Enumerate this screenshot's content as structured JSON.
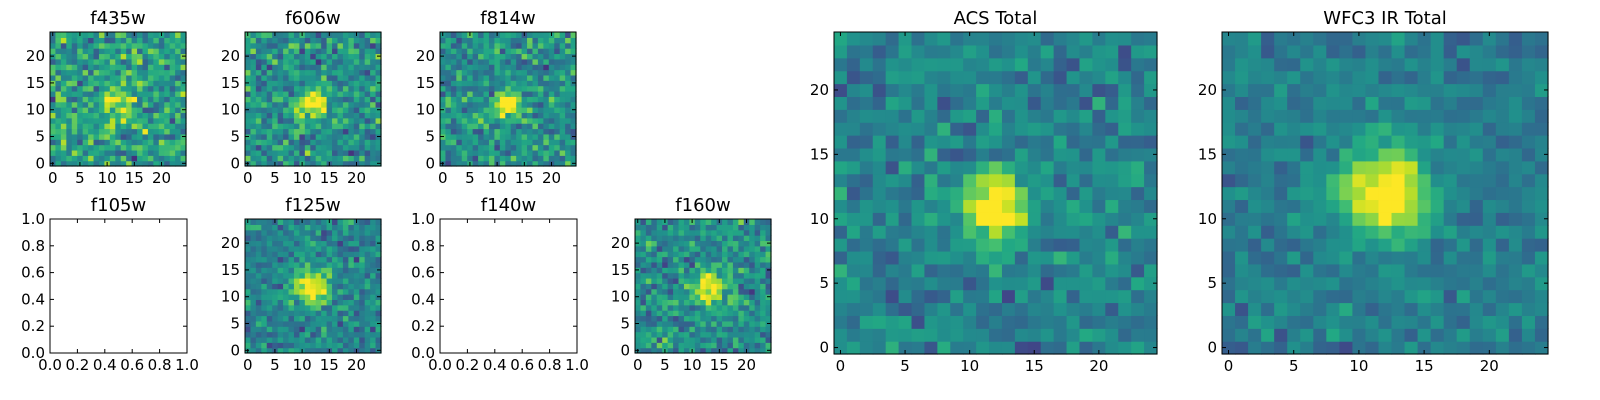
{
  "chart_data": [
    {
      "type": "heatmap",
      "title": "f435w",
      "xlim": [
        0,
        24
      ],
      "ylim": [
        0,
        24
      ],
      "xticks": [
        "0",
        "5",
        "10",
        "15",
        "20"
      ],
      "yticks": [
        "0",
        "5",
        "10",
        "15",
        "20"
      ],
      "colormap": "viridis",
      "empty": false,
      "seed": 11,
      "peak": [
        12,
        12
      ],
      "sigma": 2.5,
      "amp": 0.25,
      "noise": 1.0,
      "base": 0.55
    },
    {
      "type": "heatmap",
      "title": "f606w",
      "xlim": [
        0,
        24
      ],
      "ylim": [
        0,
        24
      ],
      "xticks": [
        "0",
        "5",
        "10",
        "15",
        "20"
      ],
      "yticks": [
        "0",
        "5",
        "10",
        "15",
        "20"
      ],
      "colormap": "viridis",
      "empty": false,
      "seed": 23,
      "peak": [
        12,
        11
      ],
      "sigma": 1.8,
      "amp": 0.5,
      "noise": 0.9,
      "base": 0.5
    },
    {
      "type": "heatmap",
      "title": "f814w",
      "xlim": [
        0,
        24
      ],
      "ylim": [
        0,
        24
      ],
      "xticks": [
        "0",
        "5",
        "10",
        "15",
        "20"
      ],
      "yticks": [
        "0",
        "5",
        "10",
        "15",
        "20"
      ],
      "colormap": "viridis",
      "empty": false,
      "seed": 37,
      "peak": [
        12,
        11
      ],
      "sigma": 1.6,
      "amp": 0.55,
      "noise": 0.85,
      "base": 0.5
    },
    {
      "type": "empty",
      "title": "f105w",
      "xlim": [
        0,
        1
      ],
      "ylim": [
        0,
        1
      ],
      "xticks": [
        "0.0",
        "0.2",
        "0.4",
        "0.6",
        "0.8",
        "1.0"
      ],
      "yticks": [
        "0.0",
        "0.2",
        "0.4",
        "0.6",
        "0.8",
        "1.0"
      ],
      "empty": true
    },
    {
      "type": "heatmap",
      "title": "f125w",
      "xlim": [
        0,
        24
      ],
      "ylim": [
        0,
        24
      ],
      "xticks": [
        "0",
        "5",
        "10",
        "15",
        "20"
      ],
      "yticks": [
        "0",
        "5",
        "10",
        "15",
        "20"
      ],
      "colormap": "viridis",
      "empty": false,
      "seed": 51,
      "peak": [
        12,
        12
      ],
      "sigma": 2.2,
      "amp": 0.55,
      "noise": 0.7,
      "base": 0.45
    },
    {
      "type": "empty",
      "title": "f140w",
      "xlim": [
        0,
        1
      ],
      "ylim": [
        0,
        1
      ],
      "xticks": [
        "0.0",
        "0.2",
        "0.4",
        "0.6",
        "0.8",
        "1.0"
      ],
      "yticks": [
        "0.0",
        "0.2",
        "0.4",
        "0.6",
        "0.8",
        "1.0"
      ],
      "empty": true
    },
    {
      "type": "heatmap",
      "title": "f160w",
      "xlim": [
        0,
        24
      ],
      "ylim": [
        0,
        24
      ],
      "xticks": [
        "0",
        "5",
        "10",
        "15",
        "20"
      ],
      "yticks": [
        "0",
        "5",
        "10",
        "15",
        "20"
      ],
      "colormap": "viridis",
      "empty": false,
      "seed": 67,
      "peak": [
        13,
        12
      ],
      "sigma": 2.0,
      "amp": 0.5,
      "noise": 0.8,
      "base": 0.5
    },
    {
      "type": "heatmap",
      "title": "ACS Total",
      "xlim": [
        0,
        24
      ],
      "ylim": [
        0,
        24
      ],
      "xticks": [
        "0",
        "5",
        "10",
        "15",
        "20"
      ],
      "yticks": [
        "0",
        "5",
        "10",
        "15",
        "20"
      ],
      "colormap": "viridis",
      "empty": false,
      "seed": 83,
      "peak": [
        12,
        11
      ],
      "sigma": 1.7,
      "amp": 0.6,
      "noise": 0.6,
      "base": 0.45
    },
    {
      "type": "heatmap",
      "title": "WFC3 IR Total",
      "xlim": [
        0,
        24
      ],
      "ylim": [
        0,
        24
      ],
      "xticks": [
        "0",
        "5",
        "10",
        "15",
        "20"
      ],
      "yticks": [
        "0",
        "5",
        "10",
        "15",
        "20"
      ],
      "colormap": "viridis",
      "empty": false,
      "seed": 97,
      "peak": [
        12,
        12
      ],
      "sigma": 2.3,
      "amp": 0.6,
      "noise": 0.45,
      "base": 0.42
    }
  ]
}
